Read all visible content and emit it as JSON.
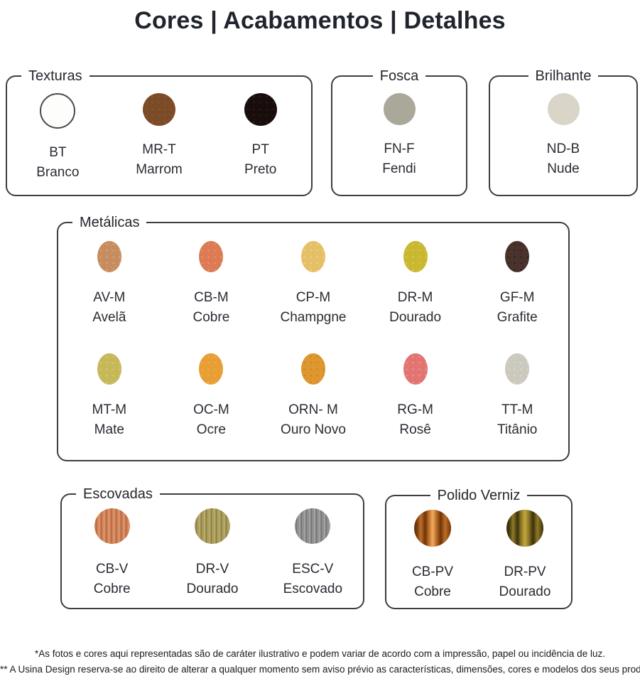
{
  "title": "Cores | Acabamentos | Detalhes",
  "groups": [
    {
      "label": "Texturas",
      "items": [
        {
          "code": "BT",
          "name": "Branco",
          "texture": "outlined",
          "color": "#FDFDFC",
          "color2": "#F4F4F2"
        },
        {
          "code": "MR-T",
          "name": "Marrom",
          "texture": "speckle",
          "color": "#7B4A27",
          "color2": "#8D5C35"
        },
        {
          "code": "PT",
          "name": "Preto",
          "texture": "speckle",
          "color": "#180D0C",
          "color2": "#33201A"
        }
      ]
    },
    {
      "label": "Fosca",
      "items": [
        {
          "code": "FN-F",
          "name": "Fendi",
          "texture": "flat",
          "color": "#A9A899",
          "color2": "#B4B3A6"
        }
      ]
    },
    {
      "label": "Brilhante",
      "items": [
        {
          "code": "ND-B",
          "name": "Nude",
          "texture": "flat",
          "color": "#D9D5C8",
          "color2": "#E2DED3"
        }
      ]
    },
    {
      "label": "Metálicas",
      "items": [
        {
          "code": "AV-M",
          "name": "Avelã",
          "texture": "speckle",
          "color": "#C68C5E",
          "color2": "#DCAA7C"
        },
        {
          "code": "CB-M",
          "name": "Cobre",
          "texture": "speckle",
          "color": "#DB7A53",
          "color2": "#E89B78"
        },
        {
          "code": "CP-M",
          "name": "Champgne",
          "texture": "speckle",
          "color": "#E5BF66",
          "color2": "#F0D68C"
        },
        {
          "code": "DR-M",
          "name": "Dourado",
          "texture": "speckle",
          "color": "#C9B72F",
          "color2": "#DCCE5C"
        },
        {
          "code": "GF-M",
          "name": "Grafite",
          "texture": "speckle",
          "color": "#4A332D",
          "color2": "#2D1C17"
        },
        {
          "code": "MT-M",
          "name": "Mate",
          "texture": "speckle",
          "color": "#C6B757",
          "color2": "#D8CC82"
        },
        {
          "code": "OC-M",
          "name": "Ocre",
          "texture": "speckle",
          "color": "#E89E33",
          "color2": "#EFB059"
        },
        {
          "code": "ORN- M",
          "name": "Ouro Novo",
          "texture": "speckle",
          "color": "#DF982F",
          "color2": "#C77E1E"
        },
        {
          "code": "RG-M",
          "name": "Rosê",
          "texture": "speckle",
          "color": "#E27370",
          "color2": "#ED9C97"
        },
        {
          "code": "TT-M",
          "name": "Titânio",
          "texture": "speckle",
          "color": "#CBC9BD",
          "color2": "#DCDAD1"
        }
      ]
    },
    {
      "label": "Escovadas",
      "items": [
        {
          "code": "CB-V",
          "name": "Cobre",
          "texture": "brushed",
          "color": "#CE8157",
          "color2": "#B06038",
          "color3": "#EBAA80"
        },
        {
          "code": "DR-V",
          "name": "Dourado",
          "texture": "brushed",
          "color": "#A79A5B",
          "color2": "#857838",
          "color3": "#C4B87E"
        },
        {
          "code": "ESC-V",
          "name": "Escovado",
          "texture": "brushed",
          "color": "#8F8F8F",
          "color2": "#6F6F6F",
          "color3": "#ADADAD"
        }
      ]
    },
    {
      "label": "Polido Verniz",
      "items": [
        {
          "code": "CB-PV",
          "name": "Cobre",
          "texture": "polished",
          "color": "#BE6F2A",
          "color2": "#6E3407",
          "color3": "#F0AC60"
        },
        {
          "code": "DR-PV",
          "name": "Dourado",
          "texture": "polished",
          "color": "#8F7A25",
          "color2": "#3B2F0E",
          "color3": "#C3A73E"
        }
      ]
    }
  ],
  "footnotes": [
    "*As fotos e cores aqui representadas são de caráter ilustrativo e podem variar de acordo com a impressão, papel ou incidência de luz.",
    "** A Usina Design reserva-se ao direito de alterar a qualquer momento sem aviso prévio as características, dimensões, cores e modelos dos seus produtos."
  ]
}
